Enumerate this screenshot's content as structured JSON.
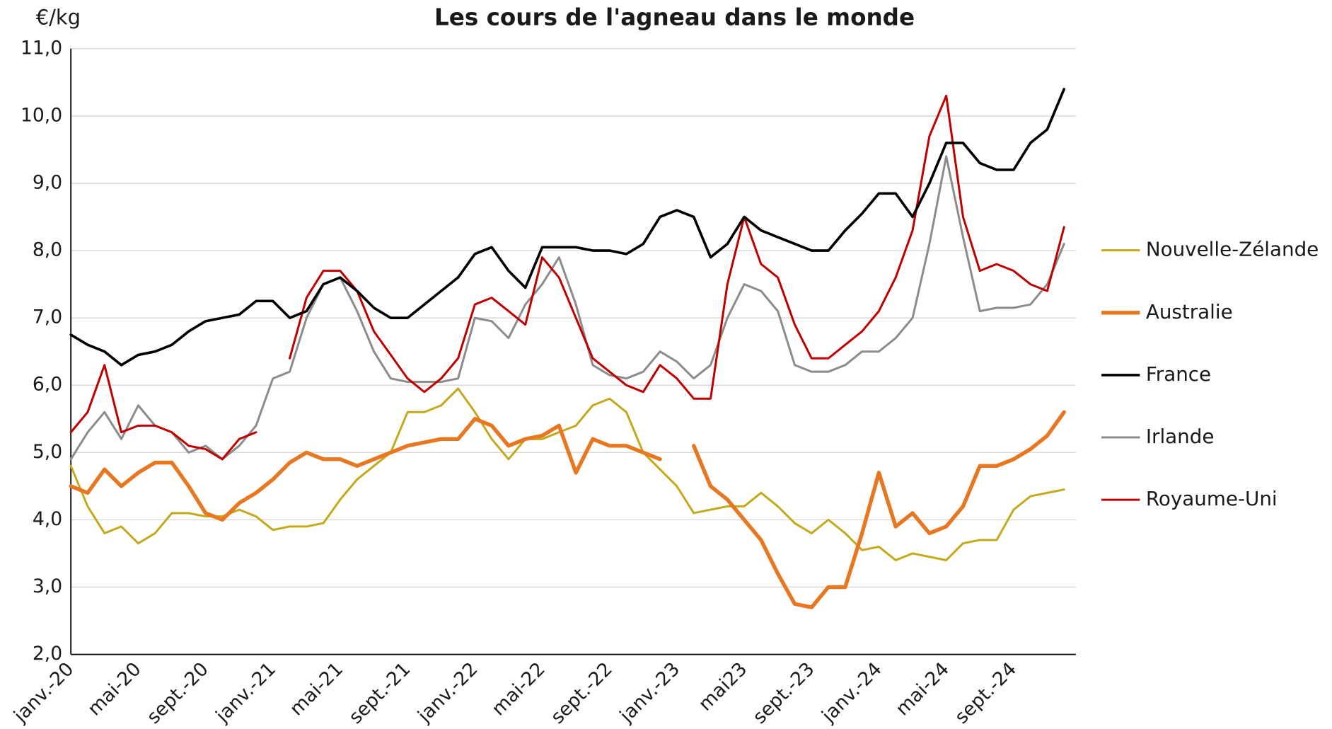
{
  "chart_data": {
    "type": "line",
    "title": "Les cours de l'agneau dans le monde",
    "y_label": "€/kg",
    "categories": [
      "janv.-20",
      null,
      null,
      null,
      "mai-20",
      null,
      null,
      null,
      "sept.-20",
      null,
      null,
      null,
      "janv.-21",
      null,
      null,
      null,
      "mai-21",
      null,
      null,
      null,
      "sept.-21",
      null,
      null,
      null,
      "janv.-22",
      null,
      null,
      null,
      "mai-22",
      null,
      null,
      null,
      "sept.-22",
      null,
      null,
      null,
      "janv.-23",
      null,
      null,
      null,
      "mai23",
      null,
      null,
      null,
      "sept.-23",
      null,
      null,
      null,
      "janv.-24",
      null,
      null,
      null,
      "mai-24",
      null,
      null,
      null,
      "sept.-24",
      null,
      null,
      null
    ],
    "ylim": [
      2,
      11
    ],
    "yticks": [
      {
        "value": 2,
        "label": "2,0"
      },
      {
        "value": 3,
        "label": "3,0"
      },
      {
        "value": 4,
        "label": "4,0"
      },
      {
        "value": 5,
        "label": "5,0"
      },
      {
        "value": 6,
        "label": "6,0"
      },
      {
        "value": 7,
        "label": "7,0"
      },
      {
        "value": 8,
        "label": "8,0"
      },
      {
        "value": 9,
        "label": "9,0"
      },
      {
        "value": 10,
        "label": "10,0"
      },
      {
        "value": 11,
        "label": "11,0"
      }
    ],
    "grid": true,
    "legend": "right",
    "series": [
      {
        "name": "Nouvelle-Zélande",
        "color": "#c4a91c",
        "width": 2.5,
        "values": [
          4.8,
          4.2,
          3.8,
          3.9,
          3.65,
          3.8,
          4.1,
          4.1,
          4.05,
          4.05,
          4.15,
          4.05,
          3.85,
          3.9,
          3.9,
          3.95,
          4.3,
          4.6,
          4.8,
          5.0,
          5.6,
          5.6,
          5.7,
          5.95,
          5.6,
          5.2,
          4.9,
          5.2,
          5.2,
          5.3,
          5.4,
          5.7,
          5.8,
          5.6,
          5.0,
          4.75,
          4.5,
          4.1,
          4.15,
          4.2,
          4.2,
          4.4,
          4.2,
          3.95,
          3.8,
          4.0,
          3.8,
          3.55,
          3.6,
          3.4,
          3.5,
          3.45,
          3.4,
          3.65,
          3.7,
          3.7,
          4.15,
          4.35,
          4.4,
          4.45
        ]
      },
      {
        "name": "Australie",
        "color": "#e87722",
        "width": 4.5,
        "values": [
          4.5,
          4.4,
          4.75,
          4.5,
          4.7,
          4.85,
          4.85,
          4.5,
          4.1,
          4.0,
          4.25,
          4.4,
          4.6,
          4.85,
          5.0,
          4.9,
          4.9,
          4.8,
          4.9,
          5.0,
          5.1,
          5.15,
          5.2,
          5.2,
          5.5,
          5.4,
          5.1,
          5.2,
          5.25,
          5.4,
          4.7,
          5.2,
          5.1,
          5.1,
          5.0,
          4.9,
          null,
          5.1,
          4.5,
          4.3,
          4.0,
          3.7,
          3.2,
          2.75,
          2.7,
          3.0,
          3.0,
          3.8,
          4.7,
          3.9,
          4.1,
          3.8,
          3.9,
          4.2,
          4.8,
          4.8,
          4.9,
          5.05,
          5.25,
          5.6
        ]
      },
      {
        "name": "France",
        "color": "#000000",
        "width": 3,
        "values": [
          6.75,
          6.6,
          6.5,
          6.3,
          6.45,
          6.5,
          6.6,
          6.8,
          6.95,
          7.0,
          7.05,
          7.25,
          7.25,
          7.0,
          7.1,
          7.5,
          7.6,
          7.4,
          7.15,
          7.0,
          7.0,
          7.2,
          7.4,
          7.6,
          7.95,
          8.05,
          7.7,
          7.45,
          8.05,
          8.05,
          8.05,
          8.0,
          8.0,
          7.95,
          8.1,
          8.5,
          8.6,
          8.5,
          7.9,
          8.1,
          8.5,
          8.3,
          8.2,
          8.1,
          8.0,
          8.0,
          8.3,
          8.55,
          8.85,
          8.85,
          8.5,
          9.0,
          9.6,
          9.6,
          9.3,
          9.2,
          9.2,
          9.6,
          9.8,
          10.4
        ]
      },
      {
        "name": "Irlande",
        "color": "#8c8c8c",
        "width": 2.5,
        "values": [
          4.9,
          5.3,
          5.6,
          5.2,
          5.7,
          5.4,
          5.3,
          5.0,
          5.1,
          4.9,
          5.1,
          5.4,
          6.1,
          6.2,
          7.0,
          7.5,
          7.6,
          7.1,
          6.5,
          6.1,
          6.05,
          6.05,
          6.05,
          6.1,
          7.0,
          6.95,
          6.7,
          7.2,
          7.5,
          7.9,
          7.2,
          6.3,
          6.15,
          6.1,
          6.2,
          6.5,
          6.35,
          6.1,
          6.3,
          7.0,
          7.5,
          7.4,
          7.1,
          6.3,
          6.2,
          6.2,
          6.3,
          6.5,
          6.5,
          6.7,
          7.0,
          8.1,
          9.4,
          8.2,
          7.1,
          7.15,
          7.15,
          7.2,
          7.5,
          8.1
        ]
      },
      {
        "name": "Royaume-Uni",
        "color": "#c00000",
        "width": 2.5,
        "values": [
          5.3,
          5.6,
          6.3,
          5.3,
          5.4,
          5.4,
          5.3,
          5.1,
          5.05,
          4.9,
          5.2,
          5.3,
          null,
          6.4,
          7.3,
          7.7,
          7.7,
          7.4,
          6.8,
          6.45,
          6.1,
          5.9,
          6.1,
          6.4,
          7.2,
          7.3,
          7.1,
          6.9,
          7.9,
          7.6,
          7.0,
          6.4,
          6.2,
          6.0,
          5.9,
          6.3,
          6.1,
          5.8,
          5.8,
          7.5,
          8.5,
          7.8,
          7.6,
          6.9,
          6.4,
          6.4,
          6.6,
          6.8,
          7.1,
          7.6,
          8.3,
          9.7,
          10.3,
          8.5,
          7.7,
          7.8,
          7.7,
          7.5,
          7.4,
          8.35
        ]
      }
    ]
  }
}
